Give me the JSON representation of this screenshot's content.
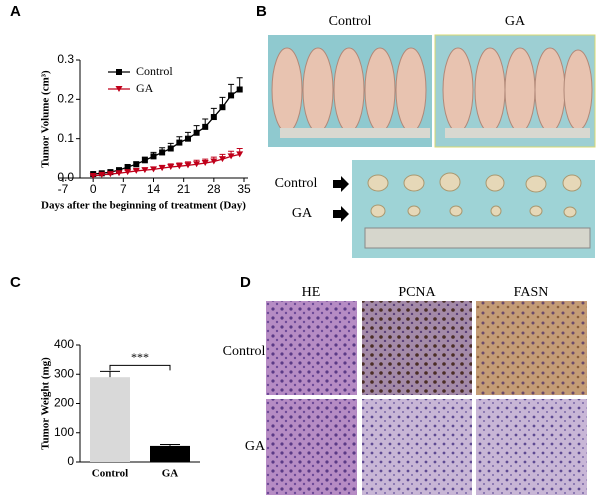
{
  "panel_labels": [
    "A",
    "B",
    "C",
    "D"
  ],
  "chart_data": [
    {
      "type": "line",
      "xlabel": "Days after the beginning of treatment (Day)",
      "ylabel": "Tumor Volume (cm³)",
      "x": [
        0,
        2,
        4,
        6,
        8,
        10,
        12,
        14,
        16,
        18,
        20,
        22,
        24,
        26,
        28,
        30,
        32,
        34
      ],
      "series": [
        {
          "name": "Control",
          "color": "#000000",
          "marker": "square",
          "values": [
            0.01,
            0.012,
            0.015,
            0.02,
            0.028,
            0.035,
            0.045,
            0.055,
            0.065,
            0.075,
            0.09,
            0.1,
            0.115,
            0.13,
            0.155,
            0.18,
            0.21,
            0.225
          ],
          "errors": [
            0.002,
            0.002,
            0.003,
            0.004,
            0.005,
            0.006,
            0.008,
            0.01,
            0.012,
            0.013,
            0.015,
            0.016,
            0.018,
            0.02,
            0.022,
            0.025,
            0.028,
            0.03
          ]
        },
        {
          "name": "GA",
          "color": "#c0001a",
          "marker": "triangle-down",
          "values": [
            0.005,
            0.008,
            0.01,
            0.012,
            0.015,
            0.018,
            0.02,
            0.022,
            0.025,
            0.028,
            0.03,
            0.032,
            0.035,
            0.038,
            0.042,
            0.048,
            0.055,
            0.06
          ],
          "errors": [
            0.002,
            0.002,
            0.003,
            0.003,
            0.004,
            0.004,
            0.005,
            0.006,
            0.007,
            0.008,
            0.008,
            0.009,
            0.01,
            0.01,
            0.011,
            0.012,
            0.013,
            0.015
          ]
        }
      ],
      "xlim": [
        -7,
        35
      ],
      "xticks": [
        -7,
        0,
        7,
        14,
        21,
        28,
        35
      ],
      "ylim": [
        0,
        0.3
      ],
      "yticks": [
        {
          "value": 0,
          "label": "0.0"
        },
        0.1,
        0.2,
        0.3
      ],
      "legend": "upper left"
    },
    {
      "type": "bar",
      "ylabel": "Tumor Weight (mg)",
      "categories": [
        "Control",
        "GA"
      ],
      "values": [
        290,
        55
      ],
      "errors": [
        20,
        5
      ],
      "colors": [
        "#d9d9d9",
        "#000000"
      ],
      "ylim": [
        0,
        400
      ],
      "yticks": [
        0,
        100,
        200,
        300,
        400
      ],
      "annotation": "***"
    }
  ],
  "photos": {
    "column_labels": [
      "Control",
      "GA"
    ],
    "row_labels": [
      "Control",
      "GA"
    ]
  },
  "histology": {
    "column_labels": [
      "HE",
      "PCNA",
      "FASN"
    ],
    "row_labels": [
      "Control",
      "GA"
    ]
  }
}
